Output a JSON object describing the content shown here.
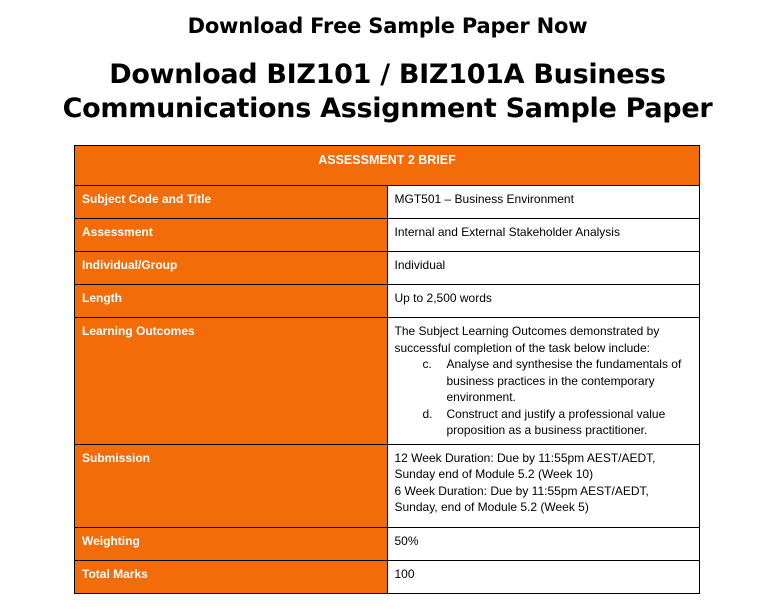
{
  "page": {
    "top_heading": "Download Free Sample Paper Now",
    "title_line1": "Download BIZ101 / BIZ101A Business",
    "title_line2": "Communications Assignment Sample Paper"
  },
  "brief": {
    "header": "ASSESSMENT 2 BRIEF",
    "subject": {
      "label": "Subject Code and Title",
      "value": "MGT501 – Business Environment"
    },
    "assessment": {
      "label": "Assessment",
      "value": "Internal and External Stakeholder Analysis"
    },
    "group": {
      "label": "Individual/Group",
      "value": "Individual"
    },
    "length": {
      "label": "Length",
      "value": "Up to 2,500 words"
    },
    "outcomes": {
      "label": "Learning Outcomes",
      "intro": "The Subject Learning Outcomes demonstrated by successful completion of the task below include:",
      "items": [
        {
          "marker": "c.",
          "text": "Analyse and synthesise the fundamentals of business practices in the contemporary environment."
        },
        {
          "marker": "d.",
          "text": "Construct and justify a professional value proposition as a business practitioner."
        }
      ]
    },
    "submission": {
      "label": "Submission",
      "line1": "12 Week Duration: Due by 11:55pm AEST/AEDT, Sunday end of Module 5.2 (Week 10)",
      "line2": "6 Week Duration: Due by 11:55pm AEST/AEDT, Sunday, end of Module 5.2 (Week 5)"
    },
    "weighting": {
      "label": "Weighting",
      "value": "50%"
    },
    "marks": {
      "label": "Total Marks",
      "value": "100"
    }
  }
}
